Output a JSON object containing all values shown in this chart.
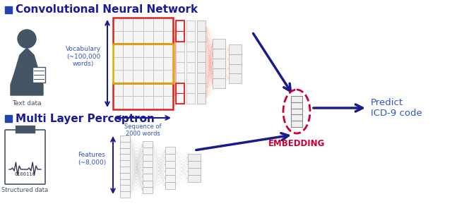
{
  "title_cnn": "Convolutional Neural Network",
  "title_mlp": "Multi Layer Perceptron",
  "label_text_data": "Text data",
  "label_structured_data": "Structured data",
  "label_vocab": "Vocabulary\n(~100,000\nwords)",
  "label_seq": "Sequence of\n2000 words",
  "label_features": "Features\n(~8,000)",
  "label_embedding": "EMBEDDING",
  "label_predict": "Predict\nICD-9 code",
  "bg_color": "#ffffff",
  "title_color": "#1a1a9c",
  "bullet_color": "#2244aa",
  "arrow_color": "#1a1a8c",
  "embedding_color": "#cc0033",
  "red_box_color": "#dd2222",
  "yellow_box_color": "#ddaa00",
  "line_red": "#ff9999",
  "line_yellow": "#ffcc88",
  "icon_color": "#445566",
  "text_label_color": "#445566",
  "blue_label_color": "#3355bb"
}
